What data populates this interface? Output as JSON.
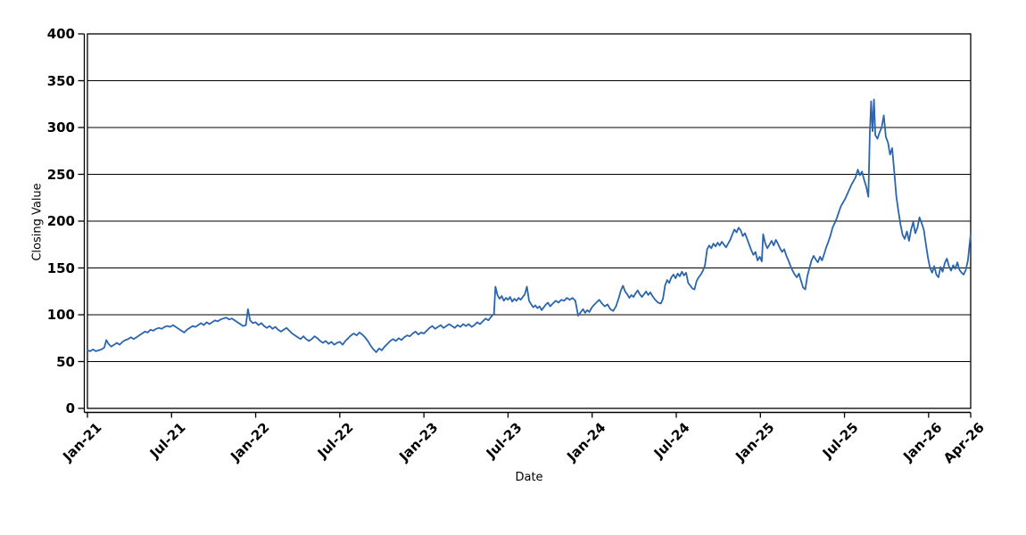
{
  "chart_data": {
    "type": "line",
    "title": "",
    "xlabel": "Date",
    "ylabel": "Closing Value",
    "series_name": "Closing Value",
    "line_color": "#2a65ad",
    "axis_color": "#000000",
    "background_color": "#ffffff",
    "grid": "horizontal-only",
    "legend": "none",
    "ylim": [
      0,
      400
    ],
    "y_ticks": [
      0,
      50,
      100,
      150,
      200,
      250,
      300,
      350,
      400
    ],
    "xlim_months": [
      0,
      63
    ],
    "x_tick_positions_months": [
      0,
      6,
      12,
      18,
      24,
      30,
      36,
      42,
      48,
      54,
      60,
      63
    ],
    "x_tick_labels": [
      "Jan-21",
      "Jul-21",
      "Jan-22",
      "Jul-22",
      "Jan-23",
      "Jul-23",
      "Jan-24",
      "Jul-24",
      "Jan-25",
      "Jul-25",
      "Jan-26",
      "Apr-26"
    ],
    "x_units": "months since Jan-2021",
    "points": [
      [
        0,
        62
      ],
      [
        0.2,
        61
      ],
      [
        0.4,
        63
      ],
      [
        0.6,
        61
      ],
      [
        0.8,
        62
      ],
      [
        1.0,
        63
      ],
      [
        1.2,
        65
      ],
      [
        1.35,
        73
      ],
      [
        1.5,
        69
      ],
      [
        1.7,
        66
      ],
      [
        1.9,
        68
      ],
      [
        2.1,
        70
      ],
      [
        2.3,
        68
      ],
      [
        2.5,
        71
      ],
      [
        2.7,
        73
      ],
      [
        2.9,
        74
      ],
      [
        3.1,
        76
      ],
      [
        3.3,
        74
      ],
      [
        3.5,
        76
      ],
      [
        3.7,
        78
      ],
      [
        3.9,
        80
      ],
      [
        4.1,
        82
      ],
      [
        4.3,
        81
      ],
      [
        4.5,
        84
      ],
      [
        4.7,
        83
      ],
      [
        4.9,
        85
      ],
      [
        5.1,
        86
      ],
      [
        5.3,
        85
      ],
      [
        5.5,
        87
      ],
      [
        5.7,
        88
      ],
      [
        5.9,
        87
      ],
      [
        6.1,
        89
      ],
      [
        6.3,
        87
      ],
      [
        6.5,
        85
      ],
      [
        6.7,
        83
      ],
      [
        6.9,
        81
      ],
      [
        7.1,
        84
      ],
      [
        7.3,
        86
      ],
      [
        7.5,
        88
      ],
      [
        7.7,
        87
      ],
      [
        7.9,
        89
      ],
      [
        8.1,
        91
      ],
      [
        8.3,
        89
      ],
      [
        8.5,
        92
      ],
      [
        8.7,
        90
      ],
      [
        8.9,
        92
      ],
      [
        9.1,
        94
      ],
      [
        9.3,
        93
      ],
      [
        9.5,
        95
      ],
      [
        9.7,
        96
      ],
      [
        9.9,
        97
      ],
      [
        10.1,
        95
      ],
      [
        10.3,
        96
      ],
      [
        10.5,
        94
      ],
      [
        10.7,
        92
      ],
      [
        10.9,
        90
      ],
      [
        11.1,
        88
      ],
      [
        11.3,
        89
      ],
      [
        11.45,
        106
      ],
      [
        11.6,
        94
      ],
      [
        11.8,
        91
      ],
      [
        12.0,
        92
      ],
      [
        12.2,
        89
      ],
      [
        12.4,
        91
      ],
      [
        12.6,
        88
      ],
      [
        12.8,
        86
      ],
      [
        13.0,
        88
      ],
      [
        13.2,
        85
      ],
      [
        13.4,
        87
      ],
      [
        13.6,
        84
      ],
      [
        13.8,
        82
      ],
      [
        14.0,
        84
      ],
      [
        14.2,
        86
      ],
      [
        14.4,
        83
      ],
      [
        14.6,
        80
      ],
      [
        14.8,
        78
      ],
      [
        15.0,
        76
      ],
      [
        15.2,
        74
      ],
      [
        15.4,
        77
      ],
      [
        15.6,
        74
      ],
      [
        15.8,
        72
      ],
      [
        16.0,
        74
      ],
      [
        16.2,
        77
      ],
      [
        16.4,
        75
      ],
      [
        16.6,
        72
      ],
      [
        16.8,
        70
      ],
      [
        17.0,
        72
      ],
      [
        17.2,
        69
      ],
      [
        17.4,
        71
      ],
      [
        17.6,
        68
      ],
      [
        17.8,
        70
      ],
      [
        18.0,
        71
      ],
      [
        18.2,
        68
      ],
      [
        18.4,
        72
      ],
      [
        18.6,
        75
      ],
      [
        18.8,
        78
      ],
      [
        19.0,
        80
      ],
      [
        19.2,
        78
      ],
      [
        19.4,
        81
      ],
      [
        19.6,
        79
      ],
      [
        19.8,
        76
      ],
      [
        20.0,
        72
      ],
      [
        20.2,
        67
      ],
      [
        20.4,
        63
      ],
      [
        20.6,
        60
      ],
      [
        20.8,
        64
      ],
      [
        21.0,
        62
      ],
      [
        21.2,
        66
      ],
      [
        21.4,
        69
      ],
      [
        21.6,
        72
      ],
      [
        21.8,
        74
      ],
      [
        22.0,
        72
      ],
      [
        22.2,
        75
      ],
      [
        22.4,
        73
      ],
      [
        22.6,
        76
      ],
      [
        22.8,
        78
      ],
      [
        23.0,
        77
      ],
      [
        23.2,
        80
      ],
      [
        23.4,
        82
      ],
      [
        23.6,
        79
      ],
      [
        23.8,
        81
      ],
      [
        24.0,
        80
      ],
      [
        24.2,
        83
      ],
      [
        24.4,
        86
      ],
      [
        24.6,
        88
      ],
      [
        24.8,
        85
      ],
      [
        25.0,
        87
      ],
      [
        25.2,
        89
      ],
      [
        25.4,
        86
      ],
      [
        25.6,
        88
      ],
      [
        25.8,
        90
      ],
      [
        26.0,
        88
      ],
      [
        26.2,
        86
      ],
      [
        26.4,
        89
      ],
      [
        26.6,
        87
      ],
      [
        26.8,
        90
      ],
      [
        27.0,
        88
      ],
      [
        27.2,
        90
      ],
      [
        27.4,
        87
      ],
      [
        27.6,
        89
      ],
      [
        27.8,
        92
      ],
      [
        28.0,
        90
      ],
      [
        28.2,
        93
      ],
      [
        28.4,
        96
      ],
      [
        28.6,
        94
      ],
      [
        28.8,
        98
      ],
      [
        29.0,
        101
      ],
      [
        29.1,
        130
      ],
      [
        29.25,
        121
      ],
      [
        29.4,
        117
      ],
      [
        29.55,
        120
      ],
      [
        29.7,
        115
      ],
      [
        29.85,
        118
      ],
      [
        30.0,
        116
      ],
      [
        30.15,
        119
      ],
      [
        30.3,
        114
      ],
      [
        30.45,
        117
      ],
      [
        30.6,
        115
      ],
      [
        30.75,
        118
      ],
      [
        30.9,
        116
      ],
      [
        31.05,
        119
      ],
      [
        31.2,
        122
      ],
      [
        31.35,
        130
      ],
      [
        31.5,
        115
      ],
      [
        31.65,
        111
      ],
      [
        31.8,
        108
      ],
      [
        31.95,
        110
      ],
      [
        32.1,
        107
      ],
      [
        32.25,
        109
      ],
      [
        32.4,
        105
      ],
      [
        32.55,
        108
      ],
      [
        32.7,
        111
      ],
      [
        32.85,
        113
      ],
      [
        33.0,
        109
      ],
      [
        33.2,
        112
      ],
      [
        33.4,
        115
      ],
      [
        33.6,
        113
      ],
      [
        33.8,
        116
      ],
      [
        34.0,
        115
      ],
      [
        34.2,
        118
      ],
      [
        34.4,
        116
      ],
      [
        34.6,
        118
      ],
      [
        34.8,
        115
      ],
      [
        35.0,
        99
      ],
      [
        35.2,
        103
      ],
      [
        35.35,
        106
      ],
      [
        35.5,
        102
      ],
      [
        35.65,
        105
      ],
      [
        35.8,
        103
      ],
      [
        35.95,
        107
      ],
      [
        36.1,
        110
      ],
      [
        36.3,
        113
      ],
      [
        36.5,
        116
      ],
      [
        36.7,
        112
      ],
      [
        36.9,
        109
      ],
      [
        37.1,
        111
      ],
      [
        37.3,
        106
      ],
      [
        37.5,
        104
      ],
      [
        37.7,
        109
      ],
      [
        37.9,
        118
      ],
      [
        38.05,
        126
      ],
      [
        38.2,
        131
      ],
      [
        38.35,
        125
      ],
      [
        38.5,
        122
      ],
      [
        38.65,
        118
      ],
      [
        38.8,
        121
      ],
      [
        38.95,
        119
      ],
      [
        39.1,
        123
      ],
      [
        39.25,
        126
      ],
      [
        39.4,
        122
      ],
      [
        39.55,
        119
      ],
      [
        39.7,
        122
      ],
      [
        39.85,
        125
      ],
      [
        40.0,
        121
      ],
      [
        40.15,
        124
      ],
      [
        40.3,
        120
      ],
      [
        40.5,
        116
      ],
      [
        40.7,
        113
      ],
      [
        40.9,
        112
      ],
      [
        41.05,
        117
      ],
      [
        41.2,
        131
      ],
      [
        41.35,
        137
      ],
      [
        41.5,
        134
      ],
      [
        41.65,
        140
      ],
      [
        41.8,
        143
      ],
      [
        41.95,
        139
      ],
      [
        42.1,
        144
      ],
      [
        42.25,
        141
      ],
      [
        42.4,
        146
      ],
      [
        42.55,
        142
      ],
      [
        42.7,
        145
      ],
      [
        42.85,
        134
      ],
      [
        43.0,
        131
      ],
      [
        43.15,
        128
      ],
      [
        43.3,
        127
      ],
      [
        43.45,
        136
      ],
      [
        43.6,
        140
      ],
      [
        43.75,
        143
      ],
      [
        43.9,
        147
      ],
      [
        44.05,
        153
      ],
      [
        44.2,
        170
      ],
      [
        44.35,
        174
      ],
      [
        44.5,
        171
      ],
      [
        44.65,
        176
      ],
      [
        44.8,
        173
      ],
      [
        44.95,
        177
      ],
      [
        45.1,
        174
      ],
      [
        45.25,
        178
      ],
      [
        45.4,
        175
      ],
      [
        45.55,
        172
      ],
      [
        45.7,
        176
      ],
      [
        45.85,
        180
      ],
      [
        46.0,
        186
      ],
      [
        46.15,
        191
      ],
      [
        46.3,
        188
      ],
      [
        46.45,
        193
      ],
      [
        46.6,
        190
      ],
      [
        46.75,
        184
      ],
      [
        46.9,
        187
      ],
      [
        47.05,
        181
      ],
      [
        47.2,
        175
      ],
      [
        47.35,
        169
      ],
      [
        47.5,
        164
      ],
      [
        47.65,
        167
      ],
      [
        47.8,
        158
      ],
      [
        47.95,
        162
      ],
      [
        48.1,
        157
      ],
      [
        48.2,
        186
      ],
      [
        48.35,
        176
      ],
      [
        48.5,
        171
      ],
      [
        48.65,
        175
      ],
      [
        48.8,
        179
      ],
      [
        48.95,
        174
      ],
      [
        49.1,
        180
      ],
      [
        49.25,
        176
      ],
      [
        49.4,
        171
      ],
      [
        49.55,
        167
      ],
      [
        49.7,
        170
      ],
      [
        49.85,
        163
      ],
      [
        50.0,
        158
      ],
      [
        50.15,
        152
      ],
      [
        50.3,
        147
      ],
      [
        50.45,
        143
      ],
      [
        50.6,
        140
      ],
      [
        50.75,
        144
      ],
      [
        50.9,
        136
      ],
      [
        51.05,
        129
      ],
      [
        51.2,
        127
      ],
      [
        51.35,
        141
      ],
      [
        51.5,
        150
      ],
      [
        51.65,
        158
      ],
      [
        51.8,
        163
      ],
      [
        51.95,
        159
      ],
      [
        52.1,
        156
      ],
      [
        52.25,
        162
      ],
      [
        52.4,
        158
      ],
      [
        52.55,
        165
      ],
      [
        52.7,
        172
      ],
      [
        52.85,
        178
      ],
      [
        53.0,
        185
      ],
      [
        53.15,
        193
      ],
      [
        53.3,
        198
      ],
      [
        53.45,
        203
      ],
      [
        53.6,
        210
      ],
      [
        53.75,
        216
      ],
      [
        53.9,
        220
      ],
      [
        54.05,
        224
      ],
      [
        54.2,
        229
      ],
      [
        54.35,
        234
      ],
      [
        54.5,
        239
      ],
      [
        54.65,
        243
      ],
      [
        54.8,
        247
      ],
      [
        54.95,
        255
      ],
      [
        55.1,
        249
      ],
      [
        55.25,
        253
      ],
      [
        55.4,
        244
      ],
      [
        55.55,
        237
      ],
      [
        55.7,
        226
      ],
      [
        55.8,
        292
      ],
      [
        55.9,
        328
      ],
      [
        56.0,
        296
      ],
      [
        56.1,
        330
      ],
      [
        56.2,
        292
      ],
      [
        56.35,
        288
      ],
      [
        56.5,
        295
      ],
      [
        56.65,
        300
      ],
      [
        56.8,
        313
      ],
      [
        56.95,
        290
      ],
      [
        57.1,
        284
      ],
      [
        57.25,
        271
      ],
      [
        57.4,
        278
      ],
      [
        57.55,
        252
      ],
      [
        57.7,
        226
      ],
      [
        57.85,
        210
      ],
      [
        58.0,
        196
      ],
      [
        58.15,
        185
      ],
      [
        58.3,
        181
      ],
      [
        58.45,
        189
      ],
      [
        58.6,
        179
      ],
      [
        58.75,
        191
      ],
      [
        58.9,
        199
      ],
      [
        59.05,
        187
      ],
      [
        59.2,
        193
      ],
      [
        59.35,
        204
      ],
      [
        59.5,
        198
      ],
      [
        59.65,
        191
      ],
      [
        59.8,
        176
      ],
      [
        59.95,
        161
      ],
      [
        60.1,
        150
      ],
      [
        60.25,
        145
      ],
      [
        60.4,
        152
      ],
      [
        60.55,
        143
      ],
      [
        60.7,
        140
      ],
      [
        60.85,
        151
      ],
      [
        61.0,
        146
      ],
      [
        61.15,
        155
      ],
      [
        61.3,
        160
      ],
      [
        61.45,
        152
      ],
      [
        61.6,
        147
      ],
      [
        61.75,
        153
      ],
      [
        61.9,
        149
      ],
      [
        62.05,
        156
      ],
      [
        62.2,
        148
      ],
      [
        62.35,
        145
      ],
      [
        62.5,
        143
      ],
      [
        62.65,
        148
      ],
      [
        62.8,
        158
      ],
      [
        62.9,
        172
      ],
      [
        63.0,
        186
      ]
    ]
  }
}
